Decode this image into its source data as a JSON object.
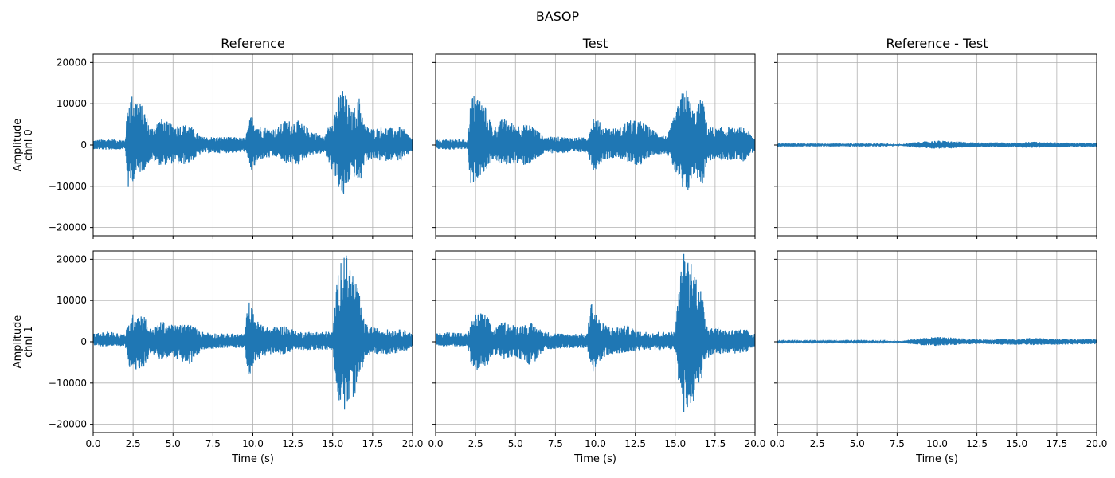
{
  "figure": {
    "title": "BASOP",
    "colors": {
      "signal": "#1f77b4",
      "grid": "#b0b0b0",
      "axis": "#000000"
    }
  },
  "chart_data": [
    {
      "type": "line",
      "title": "Reference",
      "xlabel": "",
      "ylabel": "Amplitude\nchnl 0",
      "xlim": [
        0,
        20
      ],
      "ylim": [
        -22000,
        22000
      ],
      "xticks": [
        "0.0",
        "2.5",
        "5.0",
        "7.5",
        "10.0",
        "12.5",
        "15.0",
        "17.5",
        "20.0"
      ],
      "yticks": [
        "−20000",
        "−10000",
        "0",
        "10000",
        "20000"
      ],
      "grid": true,
      "series": [
        {
          "envelope": {
            "t": [
              0,
              1,
              2,
              2.2,
              2.6,
              3.2,
              3.6,
              4.2,
              5,
              5.5,
              6,
              6.8,
              8,
              9.5,
              9.9,
              10.5,
              11.5,
              12,
              12.8,
              13.5,
              14.5,
              15.3,
              15.6,
              16.2,
              16.7,
              17,
              17.5,
              18.2,
              18.8,
              19.3,
              20
            ],
            "max": [
              1200,
              1500,
              1300,
              12000,
              12500,
              9000,
              4000,
              6500,
              5000,
              5000,
              5000,
              2000,
              2000,
              1800,
              7500,
              4500,
              4000,
              6000,
              6000,
              4000,
              2000,
              11000,
              14500,
              8000,
              12000,
              5000,
              4000,
              4500,
              4000,
              4500,
              1500
            ],
            "min": [
              -1000,
              -1200,
              -1000,
              -11000,
              -8000,
              -6000,
              -3500,
              -5000,
              -4500,
              -5000,
              -4500,
              -2000,
              -2000,
              -1800,
              -6500,
              -3500,
              -3000,
              -4500,
              -5000,
              -2500,
              -2000,
              -9500,
              -14000,
              -7000,
              -10000,
              -4000,
              -3500,
              -4000,
              -3500,
              -4000,
              -1200
            ]
          }
        }
      ]
    },
    {
      "type": "line",
      "title": "Test",
      "xlabel": "",
      "ylabel": "",
      "xlim": [
        0,
        20
      ],
      "ylim": [
        -22000,
        22000
      ],
      "xticks": [
        "0.0",
        "2.5",
        "5.0",
        "7.5",
        "10.0",
        "12.5",
        "15.0",
        "17.5",
        "20.0"
      ],
      "yticks": [
        "−20000",
        "−10000",
        "0",
        "10000",
        "20000"
      ],
      "grid": true,
      "series": [
        {
          "envelope": {
            "t": [
              0,
              1,
              2,
              2.2,
              2.6,
              3.2,
              3.6,
              4.2,
              5,
              5.5,
              6,
              6.8,
              8,
              9.5,
              9.9,
              10.5,
              11.5,
              12,
              12.8,
              13.5,
              14.5,
              15.3,
              15.6,
              16.2,
              16.7,
              17,
              17.5,
              18.2,
              18.8,
              19.3,
              20
            ],
            "max": [
              1200,
              1500,
              1300,
              12000,
              12500,
              9000,
              4000,
              6500,
              5000,
              5000,
              5000,
              2000,
              2000,
              1800,
              7500,
              4500,
              4000,
              6000,
              6000,
              4000,
              2000,
              11000,
              15000,
              8000,
              12000,
              5000,
              4000,
              4500,
              4000,
              4500,
              1500
            ],
            "min": [
              -1000,
              -1200,
              -1000,
              -11000,
              -8000,
              -6000,
              -3500,
              -5000,
              -4500,
              -5000,
              -4500,
              -2000,
              -2000,
              -1800,
              -6500,
              -3500,
              -3000,
              -4500,
              -5000,
              -2500,
              -2000,
              -9500,
              -14000,
              -7000,
              -10000,
              -4000,
              -3500,
              -4000,
              -3500,
              -4000,
              -1200
            ]
          }
        }
      ]
    },
    {
      "type": "line",
      "title": "Reference - Test",
      "xlabel": "",
      "ylabel": "",
      "xlim": [
        0,
        20
      ],
      "ylim": [
        -22000,
        22000
      ],
      "xticks": [
        "0.0",
        "2.5",
        "5.0",
        "7.5",
        "10.0",
        "12.5",
        "15.0",
        "17.5",
        "20.0"
      ],
      "yticks": [
        "−20000",
        "−10000",
        "0",
        "10000",
        "20000"
      ],
      "grid": true,
      "series": [
        {
          "envelope": {
            "t": [
              0,
              3,
              6,
              7.8,
              8.3,
              9,
              10,
              11,
              12,
              13,
              14,
              15,
              16,
              17,
              18,
              19,
              20
            ],
            "max": [
              150,
              150,
              150,
              200,
              600,
              800,
              1100,
              900,
              700,
              600,
              700,
              600,
              800,
              700,
              600,
              600,
              500
            ],
            "min": [
              -100,
              -100,
              -100,
              -200,
              -500,
              -700,
              -900,
              -800,
              -600,
              -500,
              -600,
              -600,
              -700,
              -600,
              -600,
              -500,
              -500
            ]
          }
        }
      ]
    },
    {
      "type": "line",
      "title": "",
      "xlabel": "Time (s)",
      "ylabel": "Amplitude\nchnl 1",
      "xlim": [
        0,
        20
      ],
      "ylim": [
        -22000,
        22000
      ],
      "xticks": [
        "0.0",
        "2.5",
        "5.0",
        "7.5",
        "10.0",
        "12.5",
        "15.0",
        "17.5",
        "20.0"
      ],
      "yticks": [
        "−20000",
        "−10000",
        "0",
        "10000",
        "20000"
      ],
      "grid": true,
      "series": [
        {
          "envelope": {
            "t": [
              0,
              1,
              2,
              2.3,
              2.6,
              3.2,
              3.6,
              4.3,
              5,
              6,
              6.8,
              8,
              9.5,
              9.7,
              10.3,
              11,
              12,
              12.8,
              13.5,
              15,
              15.2,
              15.5,
              15.9,
              16.5,
              17,
              17.5,
              18.5,
              19.5,
              20
            ],
            "max": [
              2000,
              2500,
              2000,
              5500,
              7500,
              6500,
              3000,
              5000,
              4000,
              4500,
              2500,
              2000,
              2000,
              10500,
              5000,
              3500,
              4000,
              2500,
              2500,
              2500,
              12000,
              22000,
              21000,
              15000,
              4500,
              3500,
              3000,
              3000,
              2000
            ],
            "min": [
              -1000,
              -1200,
              -1000,
              -7000,
              -7500,
              -6000,
              -3000,
              -4500,
              -3500,
              -6000,
              -2000,
              -1500,
              -1500,
              -8500,
              -4500,
              -3000,
              -3000,
              -2000,
              -2000,
              -2000,
              -10000,
              -17500,
              -16000,
              -12000,
              -4000,
              -3000,
              -3000,
              -2500,
              -1000
            ]
          }
        }
      ]
    },
    {
      "type": "line",
      "title": "",
      "xlabel": "Time (s)",
      "ylabel": "",
      "xlim": [
        0,
        20
      ],
      "ylim": [
        -22000,
        22000
      ],
      "xticks": [
        "0.0",
        "2.5",
        "5.0",
        "7.5",
        "10.0",
        "12.5",
        "15.0",
        "17.5",
        "20.0"
      ],
      "yticks": [
        "−20000",
        "−10000",
        "0",
        "10000",
        "20000"
      ],
      "grid": true,
      "series": [
        {
          "envelope": {
            "t": [
              0,
              1,
              2,
              2.3,
              2.6,
              3.2,
              3.6,
              4.3,
              5,
              6,
              6.8,
              8,
              9.5,
              9.7,
              10.3,
              11,
              12,
              12.8,
              13.5,
              15,
              15.2,
              15.5,
              15.9,
              16.5,
              17,
              17.5,
              18.5,
              19.5,
              20
            ],
            "max": [
              2000,
              2500,
              2000,
              5500,
              7500,
              6500,
              3000,
              5000,
              4000,
              4500,
              2500,
              2000,
              2000,
              10500,
              5000,
              3500,
              4000,
              2500,
              2500,
              2500,
              12000,
              22000,
              21000,
              15000,
              4500,
              3500,
              3000,
              3000,
              2000
            ],
            "min": [
              -1000,
              -1200,
              -1000,
              -7000,
              -7500,
              -6000,
              -3000,
              -4500,
              -3500,
              -6000,
              -2000,
              -1500,
              -1500,
              -8500,
              -4500,
              -3000,
              -3000,
              -2000,
              -2000,
              -2000,
              -10000,
              -17500,
              -16000,
              -12000,
              -4000,
              -3000,
              -3000,
              -2500,
              -1000
            ]
          }
        }
      ]
    },
    {
      "type": "line",
      "title": "",
      "xlabel": "Time (s)",
      "ylabel": "",
      "xlim": [
        0,
        20
      ],
      "ylim": [
        -22000,
        22000
      ],
      "xticks": [
        "0.0",
        "2.5",
        "5.0",
        "7.5",
        "10.0",
        "12.5",
        "15.0",
        "17.5",
        "20.0"
      ],
      "yticks": [
        "−20000",
        "−10000",
        "0",
        "10000",
        "20000"
      ],
      "grid": true,
      "series": [
        {
          "envelope": {
            "t": [
              0,
              3,
              6,
              7.8,
              8.3,
              9,
              10,
              11,
              12,
              13,
              14,
              15,
              16,
              17,
              18,
              19,
              20
            ],
            "max": [
              150,
              150,
              150,
              200,
              600,
              900,
              1200,
              1000,
              700,
              600,
              800,
              700,
              1000,
              800,
              700,
              800,
              600
            ],
            "min": [
              -100,
              -100,
              -100,
              -200,
              -500,
              -800,
              -1000,
              -800,
              -600,
              -500,
              -700,
              -700,
              -800,
              -700,
              -700,
              -600,
              -600
            ]
          }
        }
      ]
    }
  ]
}
